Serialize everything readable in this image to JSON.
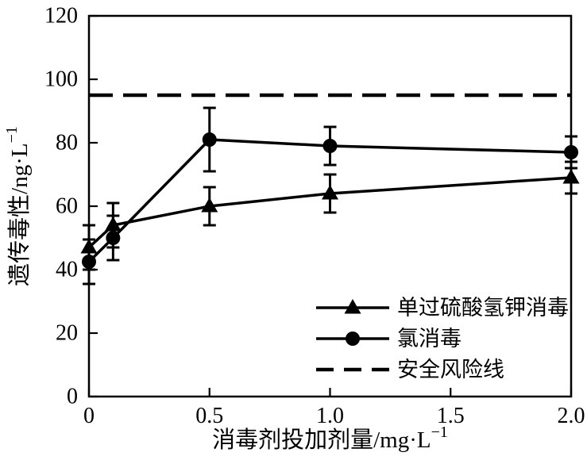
{
  "colors": {
    "ink": "#000000",
    "background": "#ffffff"
  },
  "chart_data": {
    "type": "line",
    "title": "",
    "xlim": [
      0,
      2.0
    ],
    "ylim": [
      0,
      120
    ],
    "grid": false,
    "x_axis": {
      "title_base": "消毒剂投加剂量/mg·L",
      "title_sup": "−1",
      "ticks": [
        {
          "value": 0,
          "label": "0"
        },
        {
          "value": 0.5,
          "label": "0.5"
        },
        {
          "value": 1.0,
          "label": "1.0"
        },
        {
          "value": 1.5,
          "label": "1.5"
        },
        {
          "value": 2.0,
          "label": "2.0"
        }
      ]
    },
    "y_axis": {
      "title_base": "遗传毒性/ng·L",
      "title_sup": "−1",
      "ticks": [
        {
          "value": 0,
          "label": "0"
        },
        {
          "value": 20,
          "label": "20"
        },
        {
          "value": 40,
          "label": "40"
        },
        {
          "value": 60,
          "label": "60"
        },
        {
          "value": 80,
          "label": "80"
        },
        {
          "value": 100,
          "label": "100"
        },
        {
          "value": 120,
          "label": "120"
        }
      ]
    },
    "series": [
      {
        "name": "单过硫酸氢钾消毒",
        "marker": "triangle",
        "x": [
          0,
          0.1,
          0.5,
          1.0,
          2.0
        ],
        "y": [
          47,
          54,
          60,
          64,
          69
        ],
        "yerr": [
          7,
          7,
          6,
          6,
          5
        ]
      },
      {
        "name": "氯消毒",
        "marker": "circle",
        "x": [
          0,
          0.1,
          0.5,
          1.0,
          2.0
        ],
        "y": [
          42.5,
          50,
          81,
          79,
          77
        ],
        "yerr": [
          7,
          7,
          10,
          6,
          5
        ]
      }
    ],
    "safety_line": {
      "value": 95,
      "style": "dashed",
      "label": "安全风险线"
    },
    "legend": {
      "position": "inside-bottom-right",
      "entries": [
        {
          "marker": "triangle",
          "label": "单过硫酸氢钾消毒"
        },
        {
          "marker": "circle",
          "label": "氯消毒"
        },
        {
          "marker": "dash",
          "label": "安全风险线"
        }
      ]
    }
  }
}
